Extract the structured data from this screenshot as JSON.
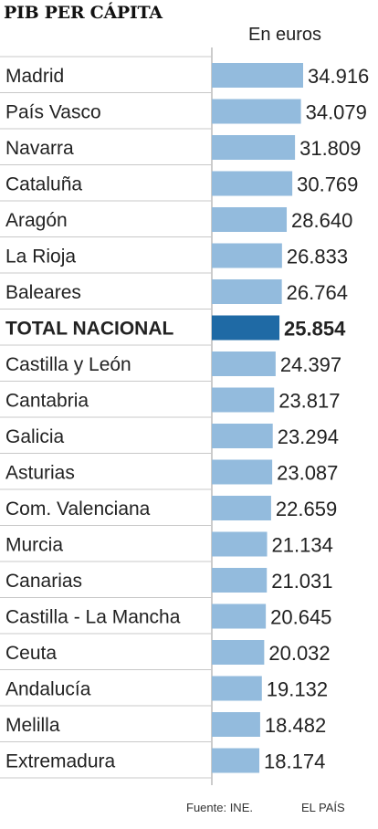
{
  "chart_data": {
    "type": "bar",
    "orientation": "horizontal",
    "title": "PIB PER CÁPITA",
    "unit_label": "En euros",
    "categories": [
      "Madrid",
      "País Vasco",
      "Navarra",
      "Cataluña",
      "Aragón",
      "La Rioja",
      "Baleares",
      "TOTAL NACIONAL",
      "Castilla y León",
      "Cantabria",
      "Galicia",
      "Asturias",
      "Com. Valenciana",
      "Murcia",
      "Canarias",
      "Castilla - La Mancha",
      "Ceuta",
      "Andalucía",
      "Melilla",
      "Extremadura"
    ],
    "values": [
      34916,
      34079,
      31809,
      30769,
      28640,
      26833,
      26764,
      25854,
      24397,
      23817,
      23294,
      23087,
      22659,
      21134,
      21031,
      20645,
      20032,
      19132,
      18482,
      18174
    ],
    "value_labels": [
      "34.916",
      "34.079",
      "31.809",
      "30.769",
      "28.640",
      "26.833",
      "26.764",
      "25.854",
      "24.397",
      "23.817",
      "23.294",
      "23.087",
      "22.659",
      "21.134",
      "21.031",
      "20.645",
      "20.032",
      "19.132",
      "18.482",
      "18.174"
    ],
    "highlight": "TOTAL NACIONAL",
    "colors": {
      "bar": "#93bbdd",
      "highlight_bar": "#1f6aa5",
      "grid": "#c8c8c8",
      "text": "#222222"
    },
    "grid": true
  },
  "footer": {
    "source": "Fuente: INE.",
    "brand": "EL PAÍS"
  }
}
